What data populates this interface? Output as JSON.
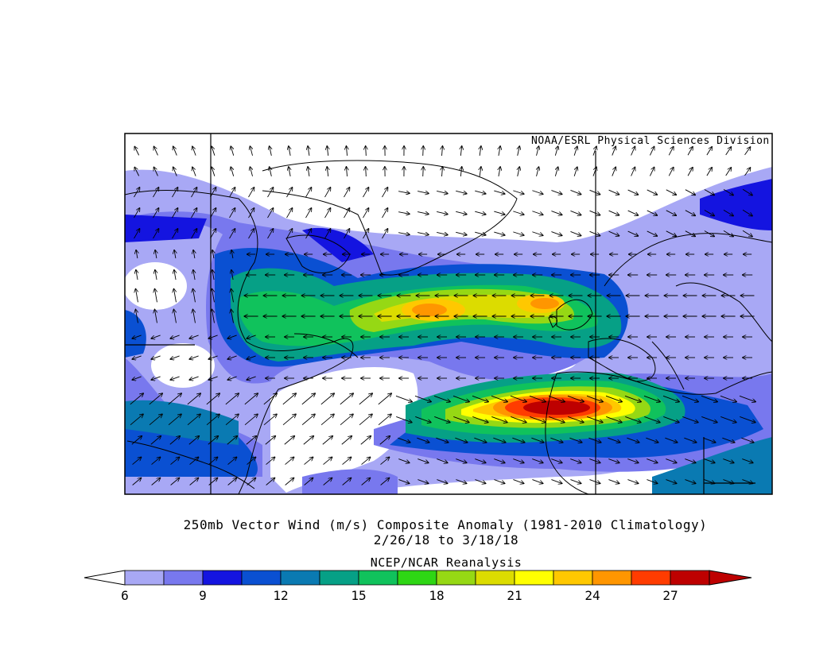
{
  "credit": "NOAA/ESRL Physical Sciences Division",
  "title": "250mb Vector Wind (m/s) Composite Anomaly (1981-2010 Climatology)",
  "date_range": "2/26/18  to 3/18/18",
  "source": "NCEP/NCAR Reanalysis",
  "colorbar": {
    "ticks": [
      "6",
      "9",
      "12",
      "15",
      "18",
      "21",
      "24",
      "27"
    ],
    "colors": [
      "#a8a8f5",
      "#7878ee",
      "#1414e0",
      "#0a50d2",
      "#0a7ab2",
      "#06a086",
      "#10c25c",
      "#2ed614",
      "#96d814",
      "#dcdc00",
      "#ffff00",
      "#ffc800",
      "#ff9600",
      "#ff3c00",
      "#be0000"
    ]
  }
}
